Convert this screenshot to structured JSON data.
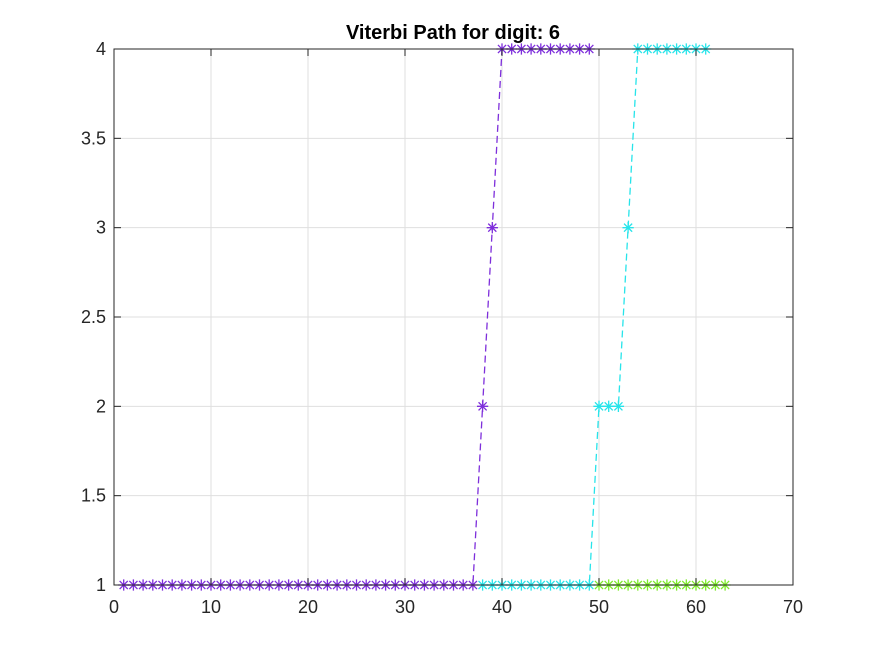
{
  "chart_data": {
    "type": "line",
    "title": "Viterbi Path for digit: 6",
    "xlabel": "",
    "ylabel": "",
    "xlim": [
      0,
      70
    ],
    "ylim": [
      1,
      4
    ],
    "xticks": [
      0,
      10,
      20,
      30,
      40,
      50,
      60,
      70
    ],
    "yticks": [
      1,
      1.5,
      2,
      2.5,
      3,
      3.5,
      4
    ],
    "xtick_labels": [
      "0",
      "10",
      "20",
      "30",
      "40",
      "50",
      "60",
      "70"
    ],
    "ytick_labels": [
      "1",
      "1.5",
      "2",
      "2.5",
      "3",
      "3.5",
      "4"
    ],
    "grid": true,
    "series": [
      {
        "color": "#7e2fdb",
        "x": [
          1,
          2,
          3,
          4,
          5,
          6,
          7,
          8,
          9,
          10,
          11,
          12,
          13,
          14,
          15,
          16,
          17,
          18,
          19,
          20,
          21,
          22,
          23,
          24,
          25,
          26,
          27,
          28,
          29,
          30,
          31,
          32,
          33,
          34,
          35,
          36,
          37,
          38,
          39,
          40,
          41,
          42,
          43,
          44,
          45,
          46,
          47,
          48,
          49
        ],
        "y": [
          1,
          1,
          1,
          1,
          1,
          1,
          1,
          1,
          1,
          1,
          1,
          1,
          1,
          1,
          1,
          1,
          1,
          1,
          1,
          1,
          1,
          1,
          1,
          1,
          1,
          1,
          1,
          1,
          1,
          1,
          1,
          1,
          1,
          1,
          1,
          1,
          1,
          2,
          3,
          4,
          4,
          4,
          4,
          4,
          4,
          4,
          4,
          4,
          4
        ]
      },
      {
        "color": "#27e4ea",
        "x": [
          38,
          39,
          40,
          41,
          42,
          43,
          44,
          45,
          46,
          47,
          48,
          49,
          50,
          51,
          52,
          53,
          54,
          55,
          56,
          57,
          58,
          59,
          60,
          61
        ],
        "y": [
          1,
          1,
          1,
          1,
          1,
          1,
          1,
          1,
          1,
          1,
          1,
          1,
          2,
          2,
          2,
          3,
          4,
          4,
          4,
          4,
          4,
          4,
          4,
          4
        ]
      },
      {
        "color": "#7fea2c",
        "x": [
          50,
          51,
          52,
          53,
          54,
          55,
          56,
          57,
          58,
          59,
          60,
          61,
          62,
          63
        ],
        "y": [
          1,
          1,
          1,
          1,
          1,
          1,
          1,
          1,
          1,
          1,
          1,
          1,
          1,
          1
        ]
      }
    ]
  }
}
